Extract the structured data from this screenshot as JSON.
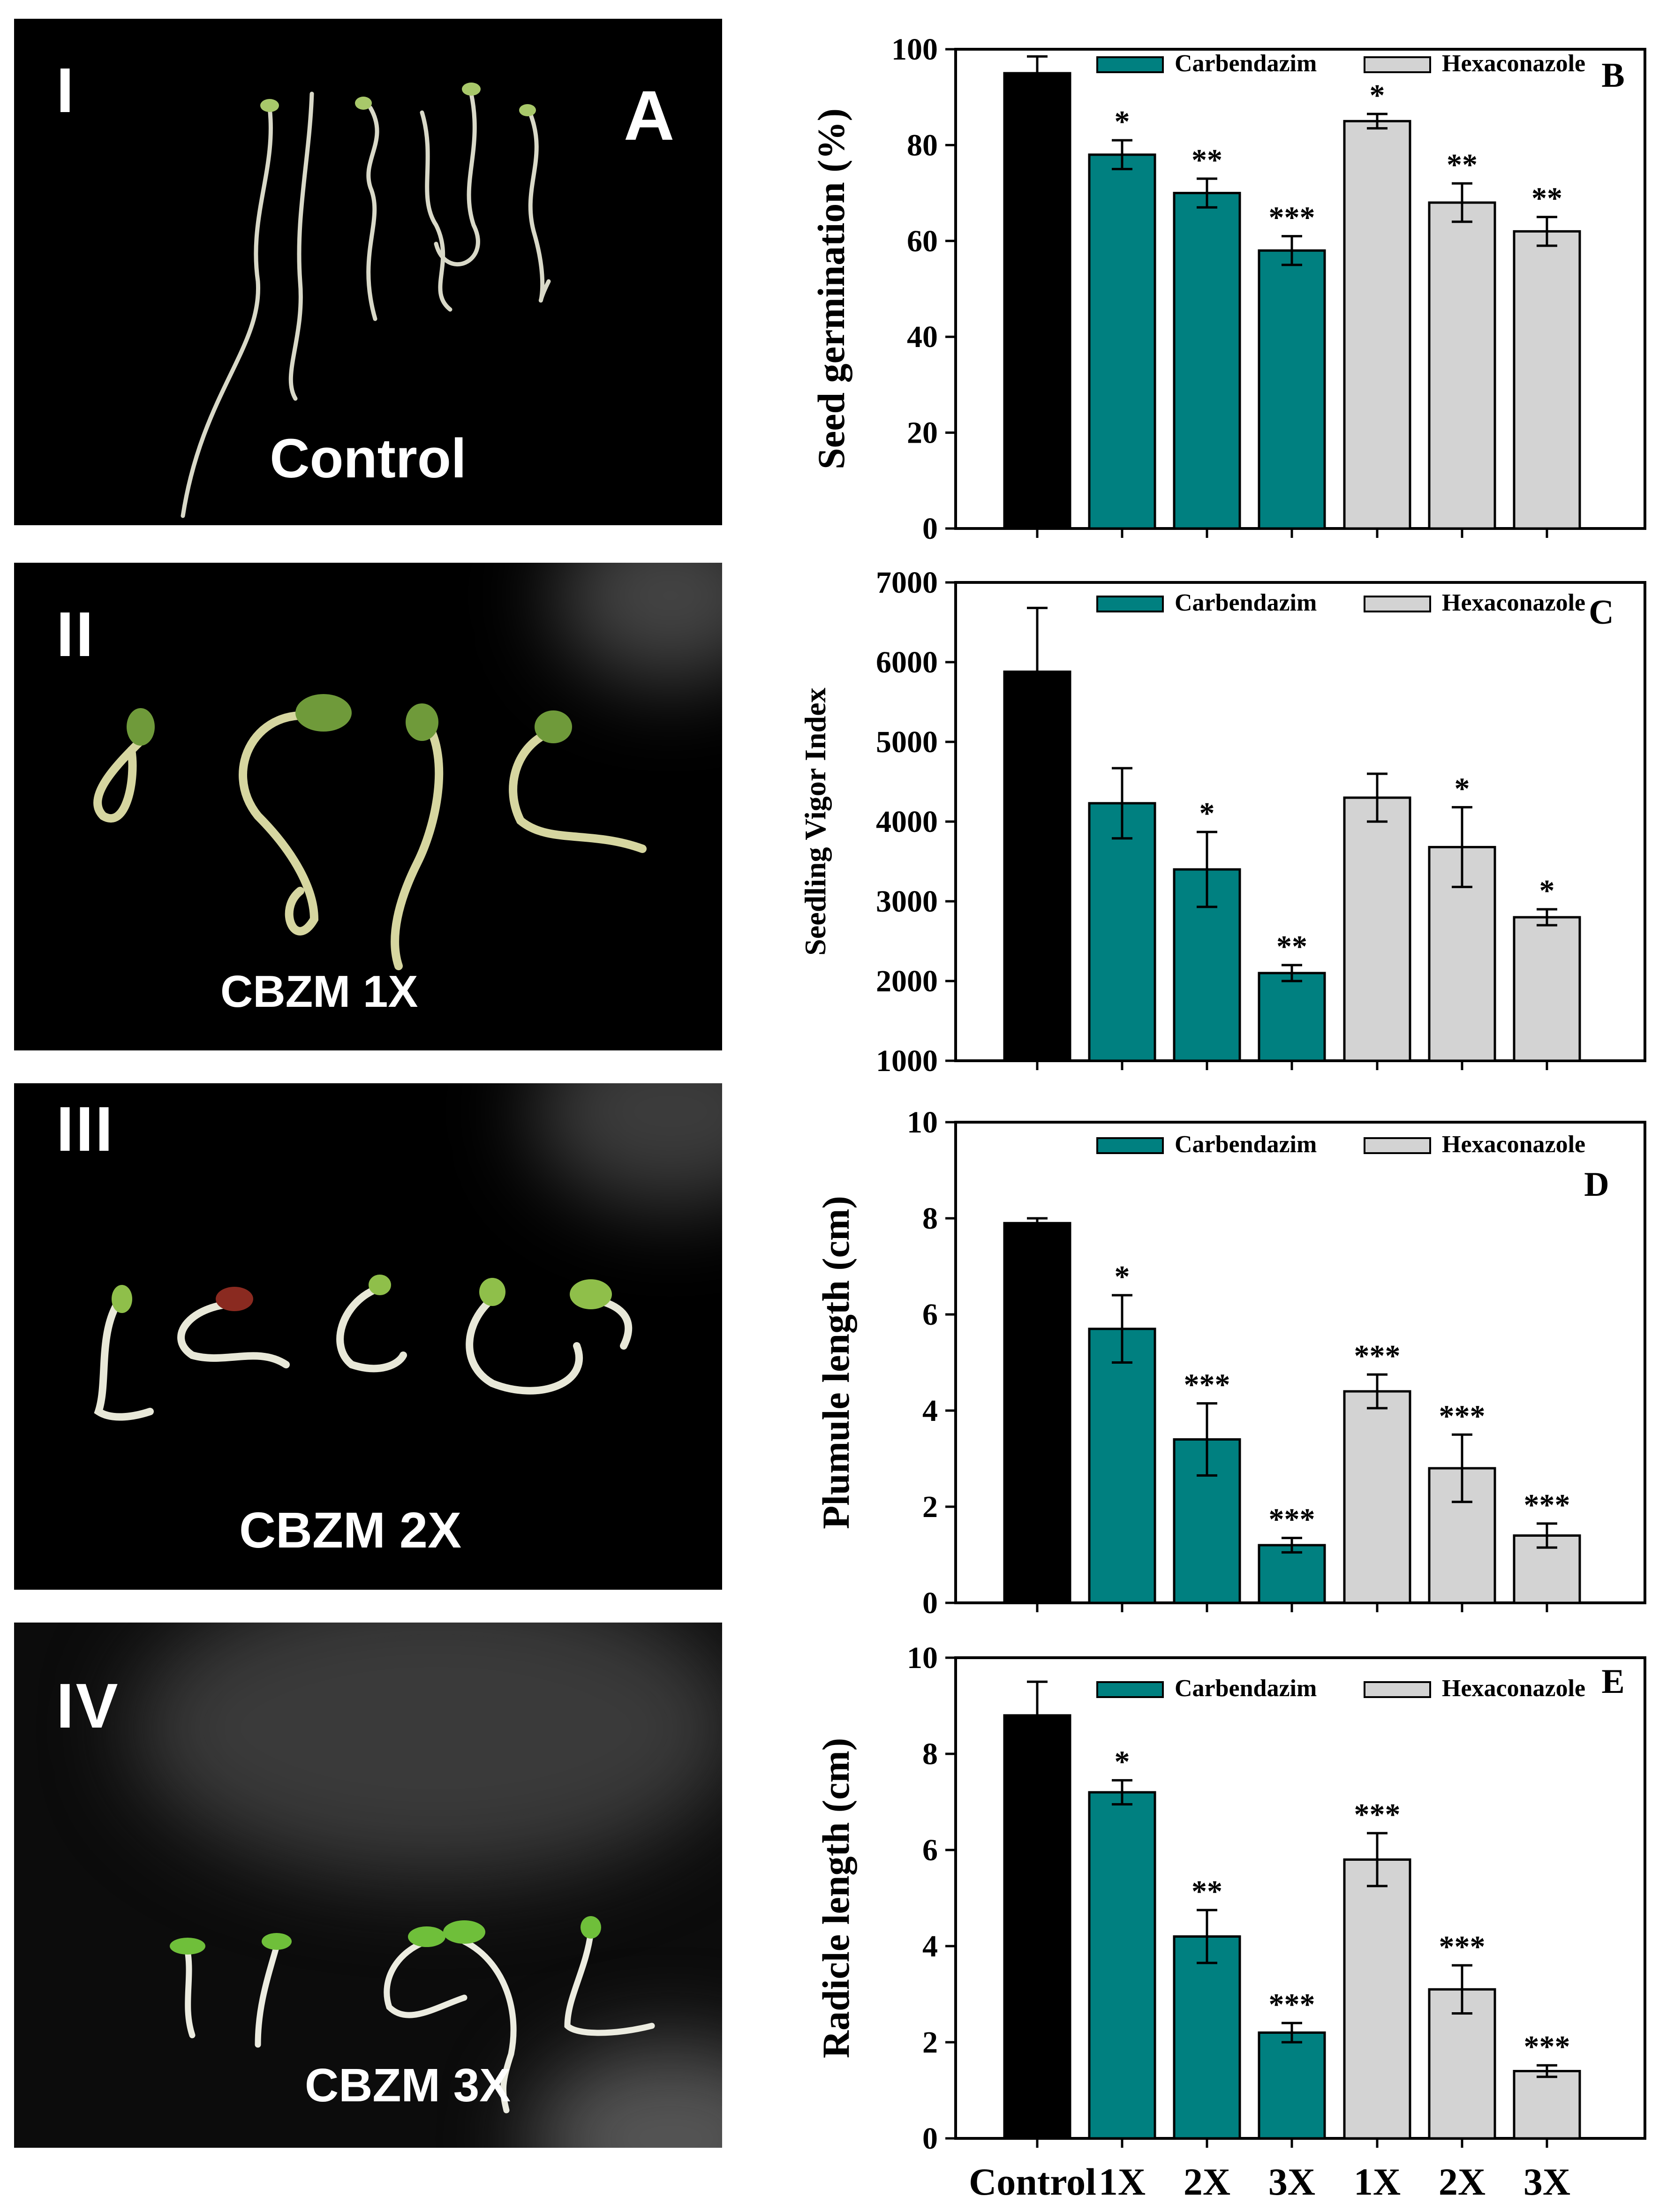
{
  "colors": {
    "control": "#000000",
    "carbendazim": "#008080",
    "hexaconazole": "#D3D3D3"
  },
  "photos": [
    {
      "roman": "I",
      "letter": "A",
      "caption": "Control"
    },
    {
      "roman": "II",
      "letter": "",
      "caption": "CBZM 1X"
    },
    {
      "roman": "III",
      "letter": "",
      "caption": "CBZM 2X"
    },
    {
      "roman": "IV",
      "letter": "",
      "caption": "CBZM 3X"
    }
  ],
  "chart_data": [
    {
      "type": "bar",
      "panel": "B",
      "ylabel": "Seed germination (%)",
      "ylim": [
        0,
        100
      ],
      "yticks": [
        0,
        20,
        40,
        60,
        80,
        100
      ],
      "categories": [
        "Control",
        "1X",
        "2X",
        "3X",
        "1X",
        "2X",
        "3X"
      ],
      "legend": [
        "Carbendazim",
        "Hexaconazole"
      ],
      "values": [
        95,
        78,
        70,
        58,
        85,
        68,
        62
      ],
      "errors": [
        3.5,
        3,
        3,
        3,
        1.5,
        4,
        3
      ],
      "stars": [
        "",
        "*",
        "**",
        "***",
        "*",
        "**",
        "**"
      ]
    },
    {
      "type": "bar",
      "panel": "C",
      "ylabel": "Seedling Vigor Index",
      "ylim": [
        1000,
        7000
      ],
      "yticks": [
        1000,
        2000,
        3000,
        4000,
        5000,
        6000,
        7000
      ],
      "categories": [
        "Control",
        "1X",
        "2X",
        "3X",
        "1X",
        "2X",
        "3X"
      ],
      "legend": [
        "Carbendazim",
        "Hexaconazole"
      ],
      "values": [
        5880,
        4230,
        3400,
        2100,
        4300,
        3680,
        2800
      ],
      "errors": [
        800,
        440,
        470,
        100,
        300,
        500,
        100
      ],
      "stars": [
        "",
        "",
        "*",
        "**",
        "",
        "*",
        "*"
      ]
    },
    {
      "type": "bar",
      "panel": "D",
      "ylabel": "Plumule length (cm)",
      "ylim": [
        0,
        10
      ],
      "yticks": [
        0,
        2,
        4,
        6,
        8,
        10
      ],
      "categories": [
        "Control",
        "1X",
        "2X",
        "3X",
        "1X",
        "2X",
        "3X"
      ],
      "legend": [
        "Carbendazim",
        "Hexaconazole"
      ],
      "values": [
        7.9,
        5.7,
        3.4,
        1.2,
        4.4,
        2.8,
        1.4
      ],
      "errors": [
        0.1,
        0.7,
        0.75,
        0.15,
        0.35,
        0.7,
        0.25
      ],
      "stars": [
        "",
        "*",
        "***",
        "***",
        "***",
        "***",
        "***"
      ]
    },
    {
      "type": "bar",
      "panel": "E",
      "ylabel": "Radicle length (cm)",
      "ylim": [
        0,
        10
      ],
      "yticks": [
        0,
        2,
        4,
        6,
        8,
        10
      ],
      "categories": [
        "Control",
        "1X",
        "2X",
        "3X",
        "1X",
        "2X",
        "3X"
      ],
      "legend": [
        "Carbendazim",
        "Hexaconazole"
      ],
      "values": [
        8.8,
        7.2,
        4.2,
        2.2,
        5.8,
        3.1,
        1.4
      ],
      "errors": [
        0.7,
        0.25,
        0.55,
        0.2,
        0.55,
        0.5,
        0.12
      ],
      "stars": [
        "",
        "*",
        "**",
        "***",
        "***",
        "***",
        "***"
      ]
    }
  ]
}
